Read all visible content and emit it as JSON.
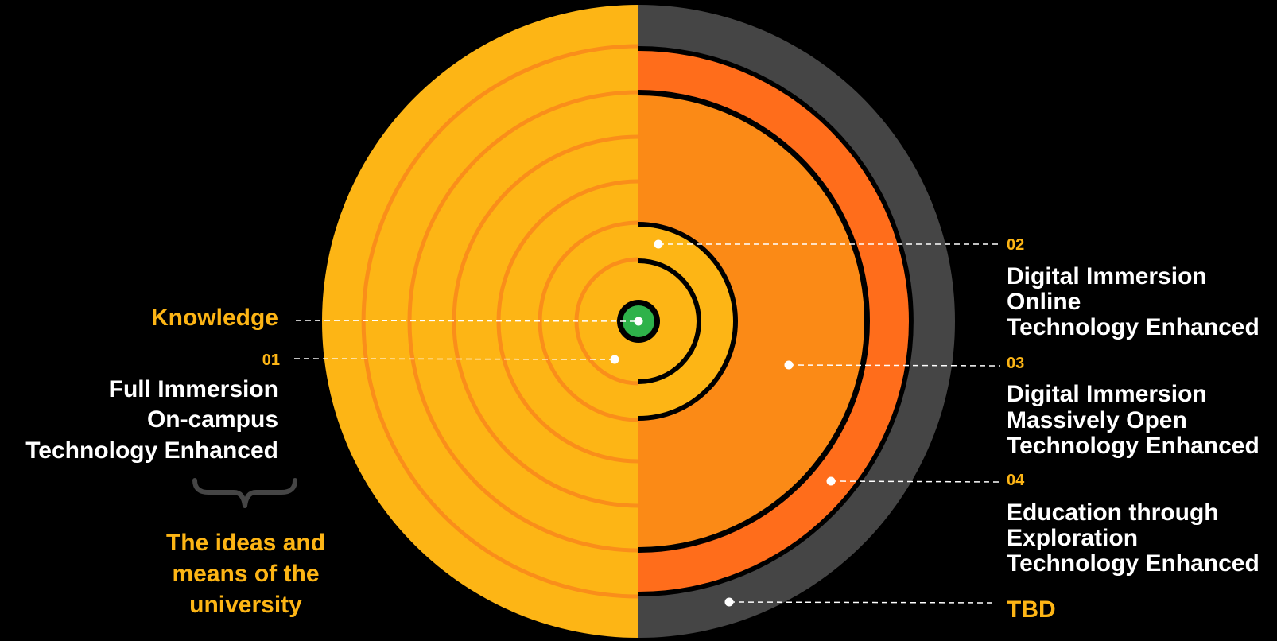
{
  "colors": {
    "background": "#000000",
    "yellow": "#FDB515",
    "yellow_ring": "#FA8E1A",
    "orange_light": "#FB8A16",
    "orange_dark": "#FF6D1B",
    "gray": "#454545",
    "green": "#2EB24A",
    "accent_text": "#FDB515",
    "white": "#ffffff"
  },
  "center": {
    "label": "Knowledge"
  },
  "left": {
    "item_01": {
      "number": "01",
      "lines": [
        "Full Immersion",
        "On-campus",
        "Technology Enhanced"
      ]
    },
    "brace_caption": [
      "The ideas and",
      "means of the",
      "university"
    ]
  },
  "right": {
    "items": [
      {
        "number": "02",
        "lines": [
          "Digital Immersion",
          "Online",
          "Technology Enhanced"
        ]
      },
      {
        "number": "03",
        "lines": [
          "Digital Immersion",
          "Massively Open",
          "Technology Enhanced"
        ]
      },
      {
        "number": "04",
        "lines": [
          "Education through",
          "Exploration",
          "Technology Enhanced"
        ]
      }
    ],
    "outer_label": "TBD"
  }
}
